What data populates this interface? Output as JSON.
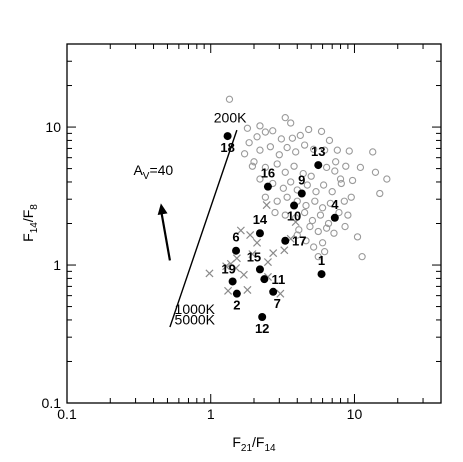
{
  "chart_data": {
    "type": "scatter",
    "x_scale": "log",
    "y_scale": "log",
    "xlim": [
      0.1,
      40
    ],
    "ylim": [
      0.1,
      40
    ],
    "x_ticks": [
      {
        "value": 0.1,
        "label": "0.1"
      },
      {
        "value": 1,
        "label": "1"
      },
      {
        "value": 10,
        "label": "10"
      }
    ],
    "y_ticks": [
      {
        "value": 0.1,
        "label": "0.1"
      },
      {
        "value": 1,
        "label": "1"
      },
      {
        "value": 10,
        "label": "10"
      }
    ],
    "xlabel": {
      "main": "F",
      "sub1": "21",
      "mid": "/F",
      "sub2": "14"
    },
    "ylabel": {
      "main": "F",
      "sub1": "14",
      "mid": "/F",
      "sub2": "8"
    },
    "grid": false,
    "colors": {
      "open": "#9a9a9a",
      "cross": "#8a8a8a",
      "filled": "#000000",
      "line": "#000000"
    },
    "labeled_sources": [
      {
        "label": "18",
        "x": 1.31,
        "y": 8.6
      },
      {
        "label": "13",
        "x": 5.6,
        "y": 5.3
      },
      {
        "label": "16",
        "x": 2.5,
        "y": 3.7
      },
      {
        "label": "9",
        "x": 4.3,
        "y": 3.3
      },
      {
        "label": "10",
        "x": 3.8,
        "y": 2.7
      },
      {
        "label": "4",
        "x": 7.3,
        "y": 2.2
      },
      {
        "label": "14",
        "x": 2.2,
        "y": 1.7
      },
      {
        "label": "17",
        "x": 3.3,
        "y": 1.5
      },
      {
        "label": "6",
        "x": 1.5,
        "y": 1.27
      },
      {
        "label": "15",
        "x": 2.2,
        "y": 0.93
      },
      {
        "label": "1",
        "x": 5.9,
        "y": 0.86
      },
      {
        "label": "19",
        "x": 1.42,
        "y": 0.76
      },
      {
        "label": "11",
        "x": 2.36,
        "y": 0.79
      },
      {
        "label": "2",
        "x": 1.52,
        "y": 0.62
      },
      {
        "label": "7",
        "x": 2.72,
        "y": 0.64
      },
      {
        "label": "12",
        "x": 2.28,
        "y": 0.42
      }
    ],
    "open_circles": [
      {
        "x": 1.8,
        "y": 9.8
      },
      {
        "x": 2.1,
        "y": 8.5
      },
      {
        "x": 2.4,
        "y": 9.2
      },
      {
        "x": 2.7,
        "y": 9.4
      },
      {
        "x": 3.1,
        "y": 8.2
      },
      {
        "x": 3.6,
        "y": 10.7
      },
      {
        "x": 4.2,
        "y": 8.7
      },
      {
        "x": 4.8,
        "y": 9.6
      },
      {
        "x": 2.2,
        "y": 6.8
      },
      {
        "x": 2.6,
        "y": 7.2
      },
      {
        "x": 3.0,
        "y": 6.3
      },
      {
        "x": 3.4,
        "y": 7.1
      },
      {
        "x": 3.9,
        "y": 6.6
      },
      {
        "x": 4.5,
        "y": 7.4
      },
      {
        "x": 5.2,
        "y": 6.9
      },
      {
        "x": 6.2,
        "y": 6.8
      },
      {
        "x": 7.6,
        "y": 6.8
      },
      {
        "x": 2.0,
        "y": 5.6
      },
      {
        "x": 2.4,
        "y": 5.1
      },
      {
        "x": 2.9,
        "y": 5.4
      },
      {
        "x": 3.3,
        "y": 4.7
      },
      {
        "x": 3.8,
        "y": 5.2
      },
      {
        "x": 4.4,
        "y": 4.6
      },
      {
        "x": 5.0,
        "y": 4.4
      },
      {
        "x": 6.4,
        "y": 5.1
      },
      {
        "x": 7.3,
        "y": 4.8
      },
      {
        "x": 8.7,
        "y": 5.2
      },
      {
        "x": 2.2,
        "y": 4.2
      },
      {
        "x": 2.7,
        "y": 3.9
      },
      {
        "x": 3.2,
        "y": 3.6
      },
      {
        "x": 3.6,
        "y": 4.0
      },
      {
        "x": 4.0,
        "y": 3.5
      },
      {
        "x": 4.7,
        "y": 3.8
      },
      {
        "x": 5.4,
        "y": 3.4
      },
      {
        "x": 6.1,
        "y": 3.8
      },
      {
        "x": 7.0,
        "y": 3.4
      },
      {
        "x": 8.1,
        "y": 3.9
      },
      {
        "x": 2.4,
        "y": 3.1
      },
      {
        "x": 2.9,
        "y": 2.9
      },
      {
        "x": 3.4,
        "y": 3.1
      },
      {
        "x": 4.0,
        "y": 2.9
      },
      {
        "x": 4.6,
        "y": 2.7
      },
      {
        "x": 5.3,
        "y": 2.9
      },
      {
        "x": 6.0,
        "y": 2.6
      },
      {
        "x": 6.8,
        "y": 2.8
      },
      {
        "x": 8.5,
        "y": 2.9
      },
      {
        "x": 9.5,
        "y": 3.1
      },
      {
        "x": 2.8,
        "y": 2.4
      },
      {
        "x": 3.3,
        "y": 2.3
      },
      {
        "x": 3.9,
        "y": 2.2
      },
      {
        "x": 4.5,
        "y": 2.4
      },
      {
        "x": 5.1,
        "y": 2.1
      },
      {
        "x": 5.8,
        "y": 2.3
      },
      {
        "x": 6.6,
        "y": 2.0
      },
      {
        "x": 7.8,
        "y": 2.4
      },
      {
        "x": 9.0,
        "y": 2.3
      },
      {
        "x": 4.1,
        "y": 1.8
      },
      {
        "x": 4.9,
        "y": 1.9
      },
      {
        "x": 5.6,
        "y": 1.75
      },
      {
        "x": 6.4,
        "y": 1.85
      },
      {
        "x": 7.2,
        "y": 1.7
      },
      {
        "x": 8.6,
        "y": 1.9
      },
      {
        "x": 10.5,
        "y": 1.6
      },
      {
        "x": 4.6,
        "y": 1.5
      },
      {
        "x": 5.2,
        "y": 1.35
      },
      {
        "x": 6.0,
        "y": 1.45
      },
      {
        "x": 5.6,
        "y": 1.15
      },
      {
        "x": 11.3,
        "y": 1.15
      },
      {
        "x": 11.0,
        "y": 5.1
      },
      {
        "x": 13.4,
        "y": 6.6
      },
      {
        "x": 14.0,
        "y": 4.7
      },
      {
        "x": 16.8,
        "y": 4.2
      },
      {
        "x": 15.0,
        "y": 3.3
      },
      {
        "x": 9.2,
        "y": 6.7
      },
      {
        "x": 1.72,
        "y": 6.4
      },
      {
        "x": 1.85,
        "y": 7.7
      },
      {
        "x": 1.95,
        "y": 5.2
      },
      {
        "x": 1.35,
        "y": 15.9
      },
      {
        "x": 3.3,
        "y": 11.7
      },
      {
        "x": 2.2,
        "y": 10.2
      },
      {
        "x": 5.9,
        "y": 9.3
      },
      {
        "x": 6.7,
        "y": 8.0
      },
      {
        "x": 7.4,
        "y": 5.6
      },
      {
        "x": 8.0,
        "y": 4.2
      },
      {
        "x": 9.7,
        "y": 4.1
      },
      {
        "x": 4.0,
        "y": 1.65
      },
      {
        "x": 6.2,
        "y": 1.25
      },
      {
        "x": 3.7,
        "y": 8.3
      }
    ],
    "crosses": [
      {
        "x": 0.98,
        "y": 0.87
      },
      {
        "x": 1.28,
        "y": 0.98
      },
      {
        "x": 1.38,
        "y": 1.02
      },
      {
        "x": 1.52,
        "y": 1.12
      },
      {
        "x": 1.62,
        "y": 1.78
      },
      {
        "x": 1.88,
        "y": 1.65
      },
      {
        "x": 1.5,
        "y": 0.95
      },
      {
        "x": 1.7,
        "y": 0.85
      },
      {
        "x": 1.95,
        "y": 1.2
      },
      {
        "x": 1.32,
        "y": 0.65
      },
      {
        "x": 1.8,
        "y": 0.66
      },
      {
        "x": 2.5,
        "y": 1.05
      },
      {
        "x": 2.72,
        "y": 1.22
      },
      {
        "x": 3.25,
        "y": 1.28
      },
      {
        "x": 3.05,
        "y": 0.62
      },
      {
        "x": 2.5,
        "y": 0.82
      },
      {
        "x": 2.45,
        "y": 2.72
      },
      {
        "x": 3.9,
        "y": 2.05
      },
      {
        "x": 3.6,
        "y": 1.55
      },
      {
        "x": 2.1,
        "y": 1.45
      }
    ],
    "temperature_line": {
      "points": [
        {
          "x": 0.52,
          "y": 0.355
        },
        {
          "x": 1.52,
          "y": 9.5
        }
      ],
      "labels": [
        {
          "text": "200K",
          "x": 1.05,
          "y": 10.8
        },
        {
          "text": "1000K",
          "x": 0.56,
          "y": 0.44
        },
        {
          "text": "5000K",
          "x": 0.56,
          "y": 0.37
        }
      ]
    },
    "extinction_vector": {
      "from": {
        "x": 0.52,
        "y": 1.08
      },
      "to": {
        "x": 0.45,
        "y": 2.8
      },
      "label_main": "A",
      "label_sub": "V",
      "label_rest": "=40",
      "label_pos": {
        "x": 0.29,
        "y": 4.5
      }
    }
  }
}
